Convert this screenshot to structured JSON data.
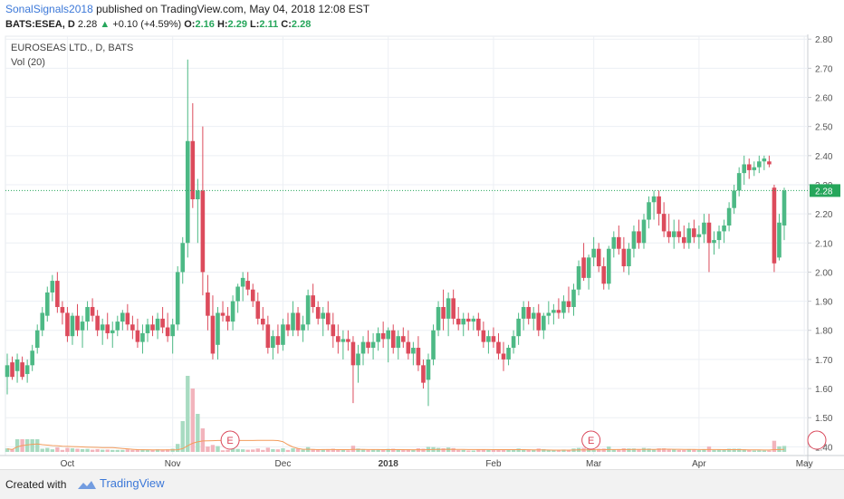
{
  "header": {
    "author": "SonalSignals2018",
    "published_text": "published on TradingView.com, May 04, 2018 12:08 EST",
    "symbol": "BATS:ESEA, D",
    "last_price": "2.28",
    "change": "+0.10 (+4.59%)",
    "o_label": "O:",
    "o_value": "2.16",
    "h_label": "H:",
    "h_value": "2.29",
    "l_label": "L:",
    "l_value": "2.11",
    "c_label": "C:",
    "c_value": "2.28"
  },
  "legend": {
    "title": "EUROSEAS LTD., D, BATS",
    "volume": "Vol (20)"
  },
  "earnings_marker": "E",
  "footer": {
    "created_with": "Created with",
    "brand": "TradingView"
  },
  "colors": {
    "up": "#4db985",
    "down": "#dc4b5c",
    "vol_up": "#a8dbc1",
    "vol_down": "#f2b4bc",
    "vol_ma": "#f39c5c",
    "price_line": "#26a65b",
    "grid": "#eceff4"
  },
  "chart_data": {
    "type": "candlestick",
    "title": "EUROSEAS LTD., D, BATS",
    "last_price": 2.28,
    "ylim": [
      1.37,
      2.81
    ],
    "y_ticks": [
      2.8,
      2.7,
      2.6,
      2.5,
      2.4,
      2.3,
      2.2,
      2.1,
      2.0,
      1.9,
      1.8,
      1.7,
      1.6,
      1.5,
      1.4
    ],
    "x_ticks": [
      "Oct",
      "Nov",
      "Dec",
      "2018",
      "Feb",
      "Mar",
      "Apr",
      "May"
    ],
    "earnings_dates": [
      "2017-11-14",
      "2018-03-01"
    ],
    "candles": [
      {
        "o": 1.64,
        "h": 1.72,
        "l": 1.58,
        "c": 1.68
      },
      {
        "o": 1.69,
        "h": 1.71,
        "l": 1.63,
        "c": 1.64
      },
      {
        "o": 1.66,
        "h": 1.72,
        "l": 1.62,
        "c": 1.7
      },
      {
        "o": 1.69,
        "h": 1.71,
        "l": 1.63,
        "c": 1.64
      },
      {
        "o": 1.65,
        "h": 1.7,
        "l": 1.62,
        "c": 1.68
      },
      {
        "o": 1.68,
        "h": 1.75,
        "l": 1.66,
        "c": 1.73
      },
      {
        "o": 1.74,
        "h": 1.82,
        "l": 1.72,
        "c": 1.8
      },
      {
        "o": 1.8,
        "h": 1.88,
        "l": 1.78,
        "c": 1.86
      },
      {
        "o": 1.85,
        "h": 1.95,
        "l": 1.83,
        "c": 1.93
      },
      {
        "o": 1.93,
        "h": 1.99,
        "l": 1.9,
        "c": 1.97
      },
      {
        "o": 1.97,
        "h": 2.0,
        "l": 1.86,
        "c": 1.88
      },
      {
        "o": 1.88,
        "h": 1.9,
        "l": 1.82,
        "c": 1.86
      },
      {
        "o": 1.86,
        "h": 1.88,
        "l": 1.76,
        "c": 1.78
      },
      {
        "o": 1.78,
        "h": 1.86,
        "l": 1.75,
        "c": 1.85
      },
      {
        "o": 1.85,
        "h": 1.89,
        "l": 1.78,
        "c": 1.8
      },
      {
        "o": 1.8,
        "h": 1.85,
        "l": 1.74,
        "c": 1.83
      },
      {
        "o": 1.83,
        "h": 1.9,
        "l": 1.8,
        "c": 1.88
      },
      {
        "o": 1.88,
        "h": 1.91,
        "l": 1.83,
        "c": 1.85
      },
      {
        "o": 1.85,
        "h": 1.87,
        "l": 1.78,
        "c": 1.8
      },
      {
        "o": 1.8,
        "h": 1.84,
        "l": 1.75,
        "c": 1.82
      },
      {
        "o": 1.82,
        "h": 1.86,
        "l": 1.77,
        "c": 1.79
      },
      {
        "o": 1.79,
        "h": 1.83,
        "l": 1.74,
        "c": 1.8
      },
      {
        "o": 1.8,
        "h": 1.85,
        "l": 1.78,
        "c": 1.83
      },
      {
        "o": 1.83,
        "h": 1.87,
        "l": 1.8,
        "c": 1.86
      },
      {
        "o": 1.86,
        "h": 1.89,
        "l": 1.8,
        "c": 1.82
      },
      {
        "o": 1.82,
        "h": 1.85,
        "l": 1.77,
        "c": 1.8
      },
      {
        "o": 1.8,
        "h": 1.84,
        "l": 1.74,
        "c": 1.76
      },
      {
        "o": 1.76,
        "h": 1.82,
        "l": 1.72,
        "c": 1.79
      },
      {
        "o": 1.79,
        "h": 1.84,
        "l": 1.76,
        "c": 1.82
      },
      {
        "o": 1.82,
        "h": 1.85,
        "l": 1.78,
        "c": 1.8
      },
      {
        "o": 1.8,
        "h": 1.86,
        "l": 1.77,
        "c": 1.84
      },
      {
        "o": 1.84,
        "h": 1.88,
        "l": 1.79,
        "c": 1.81
      },
      {
        "o": 1.81,
        "h": 1.86,
        "l": 1.76,
        "c": 1.78
      },
      {
        "o": 1.78,
        "h": 1.84,
        "l": 1.72,
        "c": 1.82
      },
      {
        "o": 1.82,
        "h": 2.02,
        "l": 1.8,
        "c": 2.0
      },
      {
        "o": 2.0,
        "h": 2.12,
        "l": 1.96,
        "c": 2.1
      },
      {
        "o": 2.1,
        "h": 2.73,
        "l": 2.05,
        "c": 2.45
      },
      {
        "o": 2.45,
        "h": 2.58,
        "l": 2.22,
        "c": 2.25
      },
      {
        "o": 2.25,
        "h": 2.32,
        "l": 2.1,
        "c": 2.28
      },
      {
        "o": 2.28,
        "h": 2.5,
        "l": 1.92,
        "c": 2.0
      },
      {
        "o": 1.93,
        "h": 1.99,
        "l": 1.8,
        "c": 1.85
      },
      {
        "o": 1.85,
        "h": 1.92,
        "l": 1.7,
        "c": 1.72
      },
      {
        "o": 1.75,
        "h": 1.88,
        "l": 1.7,
        "c": 1.86
      },
      {
        "o": 1.86,
        "h": 1.9,
        "l": 1.83,
        "c": 1.85
      },
      {
        "o": 1.85,
        "h": 1.88,
        "l": 1.8,
        "c": 1.83
      },
      {
        "o": 1.83,
        "h": 1.92,
        "l": 1.8,
        "c": 1.9
      },
      {
        "o": 1.9,
        "h": 1.96,
        "l": 1.86,
        "c": 1.95
      },
      {
        "o": 1.95,
        "h": 2.0,
        "l": 1.9,
        "c": 1.98
      },
      {
        "o": 1.97,
        "h": 2.0,
        "l": 1.92,
        "c": 1.94
      },
      {
        "o": 1.94,
        "h": 1.96,
        "l": 1.88,
        "c": 1.9
      },
      {
        "o": 1.9,
        "h": 1.93,
        "l": 1.82,
        "c": 1.84
      },
      {
        "o": 1.84,
        "h": 1.88,
        "l": 1.8,
        "c": 1.82
      },
      {
        "o": 1.82,
        "h": 1.85,
        "l": 1.72,
        "c": 1.74
      },
      {
        "o": 1.74,
        "h": 1.8,
        "l": 1.7,
        "c": 1.78
      },
      {
        "o": 1.78,
        "h": 1.82,
        "l": 1.72,
        "c": 1.75
      },
      {
        "o": 1.75,
        "h": 1.84,
        "l": 1.73,
        "c": 1.82
      },
      {
        "o": 1.82,
        "h": 1.86,
        "l": 1.78,
        "c": 1.8
      },
      {
        "o": 1.8,
        "h": 1.9,
        "l": 1.78,
        "c": 1.86
      },
      {
        "o": 1.86,
        "h": 1.88,
        "l": 1.78,
        "c": 1.8
      },
      {
        "o": 1.8,
        "h": 1.85,
        "l": 1.76,
        "c": 1.82
      },
      {
        "o": 1.82,
        "h": 1.94,
        "l": 1.8,
        "c": 1.92
      },
      {
        "o": 1.92,
        "h": 1.96,
        "l": 1.86,
        "c": 1.88
      },
      {
        "o": 1.88,
        "h": 1.9,
        "l": 1.82,
        "c": 1.84
      },
      {
        "o": 1.84,
        "h": 1.88,
        "l": 1.78,
        "c": 1.86
      },
      {
        "o": 1.86,
        "h": 1.9,
        "l": 1.8,
        "c": 1.82
      },
      {
        "o": 1.82,
        "h": 1.86,
        "l": 1.74,
        "c": 1.78
      },
      {
        "o": 1.78,
        "h": 1.82,
        "l": 1.72,
        "c": 1.76
      },
      {
        "o": 1.76,
        "h": 1.8,
        "l": 1.7,
        "c": 1.77
      },
      {
        "o": 1.77,
        "h": 1.8,
        "l": 1.73,
        "c": 1.76
      },
      {
        "o": 1.76,
        "h": 1.78,
        "l": 1.55,
        "c": 1.68
      },
      {
        "o": 1.68,
        "h": 1.75,
        "l": 1.62,
        "c": 1.72
      },
      {
        "o": 1.72,
        "h": 1.78,
        "l": 1.68,
        "c": 1.76
      },
      {
        "o": 1.76,
        "h": 1.8,
        "l": 1.72,
        "c": 1.74
      },
      {
        "o": 1.74,
        "h": 1.79,
        "l": 1.7,
        "c": 1.76
      },
      {
        "o": 1.76,
        "h": 1.81,
        "l": 1.73,
        "c": 1.79
      },
      {
        "o": 1.79,
        "h": 1.83,
        "l": 1.74,
        "c": 1.77
      },
      {
        "o": 1.77,
        "h": 1.81,
        "l": 1.69,
        "c": 1.8
      },
      {
        "o": 1.8,
        "h": 1.82,
        "l": 1.72,
        "c": 1.74
      },
      {
        "o": 1.74,
        "h": 1.8,
        "l": 1.7,
        "c": 1.78
      },
      {
        "o": 1.78,
        "h": 1.81,
        "l": 1.74,
        "c": 1.76
      },
      {
        "o": 1.76,
        "h": 1.8,
        "l": 1.7,
        "c": 1.72
      },
      {
        "o": 1.72,
        "h": 1.76,
        "l": 1.68,
        "c": 1.74
      },
      {
        "o": 1.74,
        "h": 1.78,
        "l": 1.66,
        "c": 1.68
      },
      {
        "o": 1.68,
        "h": 1.7,
        "l": 1.6,
        "c": 1.62
      },
      {
        "o": 1.63,
        "h": 1.72,
        "l": 1.54,
        "c": 1.7
      },
      {
        "o": 1.7,
        "h": 1.82,
        "l": 1.68,
        "c": 1.8
      },
      {
        "o": 1.8,
        "h": 1.9,
        "l": 1.78,
        "c": 1.88
      },
      {
        "o": 1.88,
        "h": 1.94,
        "l": 1.8,
        "c": 1.84
      },
      {
        "o": 1.84,
        "h": 1.93,
        "l": 1.78,
        "c": 1.91
      },
      {
        "o": 1.91,
        "h": 1.94,
        "l": 1.82,
        "c": 1.84
      },
      {
        "o": 1.84,
        "h": 1.88,
        "l": 1.8,
        "c": 1.82
      },
      {
        "o": 1.82,
        "h": 1.86,
        "l": 1.78,
        "c": 1.84
      },
      {
        "o": 1.84,
        "h": 1.86,
        "l": 1.8,
        "c": 1.83
      },
      {
        "o": 1.83,
        "h": 1.85,
        "l": 1.8,
        "c": 1.84
      },
      {
        "o": 1.84,
        "h": 1.86,
        "l": 1.78,
        "c": 1.8
      },
      {
        "o": 1.8,
        "h": 1.83,
        "l": 1.74,
        "c": 1.76
      },
      {
        "o": 1.76,
        "h": 1.8,
        "l": 1.72,
        "c": 1.78
      },
      {
        "o": 1.78,
        "h": 1.81,
        "l": 1.74,
        "c": 1.76
      },
      {
        "o": 1.76,
        "h": 1.79,
        "l": 1.7,
        "c": 1.72
      },
      {
        "o": 1.72,
        "h": 1.76,
        "l": 1.66,
        "c": 1.7
      },
      {
        "o": 1.7,
        "h": 1.75,
        "l": 1.68,
        "c": 1.74
      },
      {
        "o": 1.74,
        "h": 1.8,
        "l": 1.72,
        "c": 1.78
      },
      {
        "o": 1.78,
        "h": 1.86,
        "l": 1.75,
        "c": 1.84
      },
      {
        "o": 1.84,
        "h": 1.9,
        "l": 1.8,
        "c": 1.88
      },
      {
        "o": 1.88,
        "h": 1.9,
        "l": 1.82,
        "c": 1.84
      },
      {
        "o": 1.84,
        "h": 1.88,
        "l": 1.8,
        "c": 1.86
      },
      {
        "o": 1.86,
        "h": 1.89,
        "l": 1.78,
        "c": 1.8
      },
      {
        "o": 1.8,
        "h": 1.86,
        "l": 1.77,
        "c": 1.85
      },
      {
        "o": 1.85,
        "h": 1.9,
        "l": 1.82,
        "c": 1.86
      },
      {
        "o": 1.86,
        "h": 1.89,
        "l": 1.82,
        "c": 1.87
      },
      {
        "o": 1.87,
        "h": 1.91,
        "l": 1.84,
        "c": 1.86
      },
      {
        "o": 1.86,
        "h": 1.92,
        "l": 1.84,
        "c": 1.9
      },
      {
        "o": 1.9,
        "h": 1.95,
        "l": 1.86,
        "c": 1.88
      },
      {
        "o": 1.88,
        "h": 1.96,
        "l": 1.85,
        "c": 1.94
      },
      {
        "o": 1.94,
        "h": 2.04,
        "l": 1.92,
        "c": 2.02
      },
      {
        "o": 2.05,
        "h": 2.1,
        "l": 1.97,
        "c": 1.98
      },
      {
        "o": 1.98,
        "h": 2.06,
        "l": 1.94,
        "c": 2.05
      },
      {
        "o": 2.05,
        "h": 2.12,
        "l": 2.02,
        "c": 2.08
      },
      {
        "o": 2.08,
        "h": 2.1,
        "l": 2.0,
        "c": 2.02
      },
      {
        "o": 2.02,
        "h": 2.05,
        "l": 1.94,
        "c": 1.96
      },
      {
        "o": 1.96,
        "h": 2.09,
        "l": 1.94,
        "c": 2.08
      },
      {
        "o": 2.08,
        "h": 2.14,
        "l": 2.05,
        "c": 2.12
      },
      {
        "o": 2.12,
        "h": 2.16,
        "l": 2.06,
        "c": 2.08
      },
      {
        "o": 2.08,
        "h": 2.12,
        "l": 2.0,
        "c": 2.02
      },
      {
        "o": 2.02,
        "h": 2.1,
        "l": 1.99,
        "c": 2.08
      },
      {
        "o": 2.08,
        "h": 2.16,
        "l": 2.05,
        "c": 2.14
      },
      {
        "o": 2.14,
        "h": 2.18,
        "l": 2.08,
        "c": 2.1
      },
      {
        "o": 2.1,
        "h": 2.2,
        "l": 2.08,
        "c": 2.18
      },
      {
        "o": 2.18,
        "h": 2.26,
        "l": 2.15,
        "c": 2.24
      },
      {
        "o": 2.24,
        "h": 2.28,
        "l": 2.18,
        "c": 2.26
      },
      {
        "o": 2.26,
        "h": 2.28,
        "l": 2.16,
        "c": 2.2
      },
      {
        "o": 2.2,
        "h": 2.24,
        "l": 2.12,
        "c": 2.14
      },
      {
        "o": 2.14,
        "h": 2.2,
        "l": 2.1,
        "c": 2.12
      },
      {
        "o": 2.12,
        "h": 2.18,
        "l": 2.08,
        "c": 2.14
      },
      {
        "o": 2.14,
        "h": 2.18,
        "l": 2.1,
        "c": 2.12
      },
      {
        "o": 2.12,
        "h": 2.16,
        "l": 2.08,
        "c": 2.1
      },
      {
        "o": 2.1,
        "h": 2.17,
        "l": 2.08,
        "c": 2.15
      },
      {
        "o": 2.15,
        "h": 2.18,
        "l": 2.1,
        "c": 2.12
      },
      {
        "o": 2.12,
        "h": 2.16,
        "l": 2.08,
        "c": 2.13
      },
      {
        "o": 2.13,
        "h": 2.2,
        "l": 2.1,
        "c": 2.17
      },
      {
        "o": 2.17,
        "h": 2.2,
        "l": 2.0,
        "c": 2.1
      },
      {
        "o": 2.1,
        "h": 2.14,
        "l": 2.06,
        "c": 2.11
      },
      {
        "o": 2.11,
        "h": 2.16,
        "l": 2.08,
        "c": 2.14
      },
      {
        "o": 2.14,
        "h": 2.18,
        "l": 2.1,
        "c": 2.16
      },
      {
        "o": 2.16,
        "h": 2.24,
        "l": 2.14,
        "c": 2.22
      },
      {
        "o": 2.22,
        "h": 2.3,
        "l": 2.2,
        "c": 2.28
      },
      {
        "o": 2.28,
        "h": 2.36,
        "l": 2.26,
        "c": 2.34
      },
      {
        "o": 2.34,
        "h": 2.4,
        "l": 2.3,
        "c": 2.37
      },
      {
        "o": 2.37,
        "h": 2.39,
        "l": 2.32,
        "c": 2.35
      },
      {
        "o": 2.35,
        "h": 2.38,
        "l": 2.33,
        "c": 2.36
      },
      {
        "o": 2.36,
        "h": 2.4,
        "l": 2.34,
        "c": 2.38
      },
      {
        "o": 2.38,
        "h": 2.4,
        "l": 2.35,
        "c": 2.39
      },
      {
        "o": 2.38,
        "h": 2.4,
        "l": 2.36,
        "c": 2.37
      },
      {
        "o": 2.29,
        "h": 2.3,
        "l": 2.0,
        "c": 2.03
      },
      {
        "o": 2.05,
        "h": 2.2,
        "l": 2.04,
        "c": 2.17
      },
      {
        "o": 2.16,
        "h": 2.29,
        "l": 2.11,
        "c": 2.28
      }
    ]
  }
}
